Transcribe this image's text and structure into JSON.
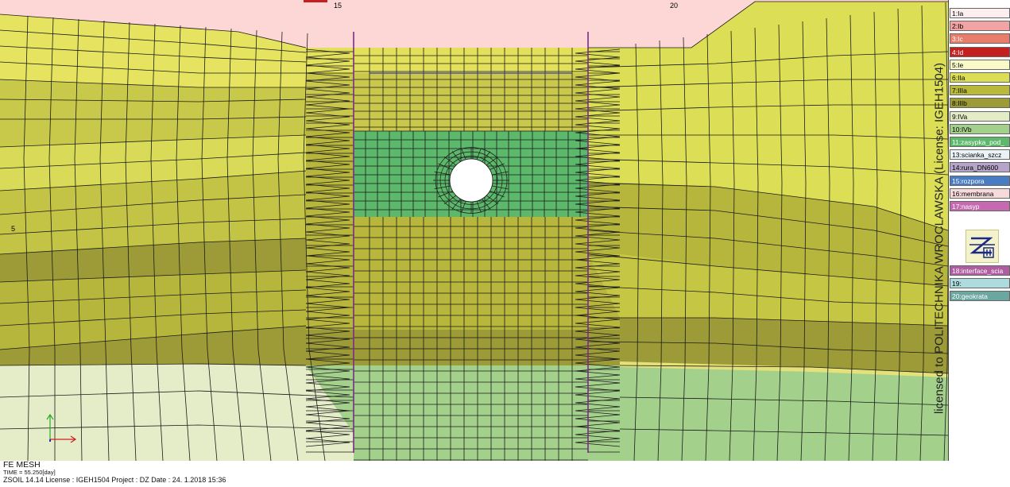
{
  "axis_labels": {
    "x15": "15",
    "x20": "20",
    "y5": "5"
  },
  "license_text": "licensed to POLITECHNIKA WROCLAWSKA (License: IGEH1504)",
  "legend": [
    {
      "label": "1:Ia",
      "color": "#fdeef0",
      "text": "#000"
    },
    {
      "label": "2:Ib",
      "color": "#f2a3a3",
      "text": "#000"
    },
    {
      "label": "3:Ic",
      "color": "#e97d6b",
      "text": "#fff"
    },
    {
      "label": "4:Id",
      "color": "#c42020",
      "text": "#fff"
    },
    {
      "label": "5:Ie",
      "color": "#fbfbc9",
      "text": "#000"
    },
    {
      "label": "6:IIa",
      "color": "#dcdf55",
      "text": "#000"
    },
    {
      "label": "7:IIIa",
      "color": "#b9b93a",
      "text": "#000"
    },
    {
      "label": "8:IIIb",
      "color": "#9c9b38",
      "text": "#000"
    },
    {
      "label": "9:IVa",
      "color": "#e3ecc7",
      "text": "#000"
    },
    {
      "label": "10:IVb",
      "color": "#a3d08b",
      "text": "#000"
    },
    {
      "label": "11:zasypka_pod_",
      "color": "#5cb86a",
      "text": "#fff"
    },
    {
      "label": "13:scianka_szcz",
      "color": "#ecf3f6",
      "text": "#000"
    },
    {
      "label": "14:rura_DN600",
      "color": "#b6a5c9",
      "text": "#000"
    },
    {
      "label": "15:rozpora",
      "color": "#4a7cc2",
      "text": "#fff"
    },
    {
      "label": "16:membrana",
      "color": "#f7dada",
      "text": "#000"
    },
    {
      "label": "17:nasyp",
      "color": "#c56ab1",
      "text": "#fff"
    },
    {
      "label": "18:interface_scia",
      "color": "#b05ca0",
      "text": "#fff"
    },
    {
      "label": "19:",
      "color": "#aedcde",
      "text": "#000"
    },
    {
      "label": "20:geokrata",
      "color": "#6aa7a0",
      "text": "#fff"
    }
  ],
  "footer": {
    "title": "FE MESH",
    "time": "TIME = 55.250[day]",
    "info": "ZSOIL 14.14   License :  IGEH1504   Project : DZ    Date : 24. 1.2018  15:36"
  },
  "colors": {
    "top": "#fdd6d6",
    "yellow_light": "#dfe15b",
    "yellow_mid": "#c8c84a",
    "olive": "#b6b53c",
    "olive_dark": "#999838",
    "green_pale": "#a3d08b",
    "green_fill": "#5cb86a",
    "cream": "#e4ecc8",
    "sheet_pile": "#7b2b88",
    "strut": "#3b3fa5",
    "mesh": "#1a1a1a"
  }
}
